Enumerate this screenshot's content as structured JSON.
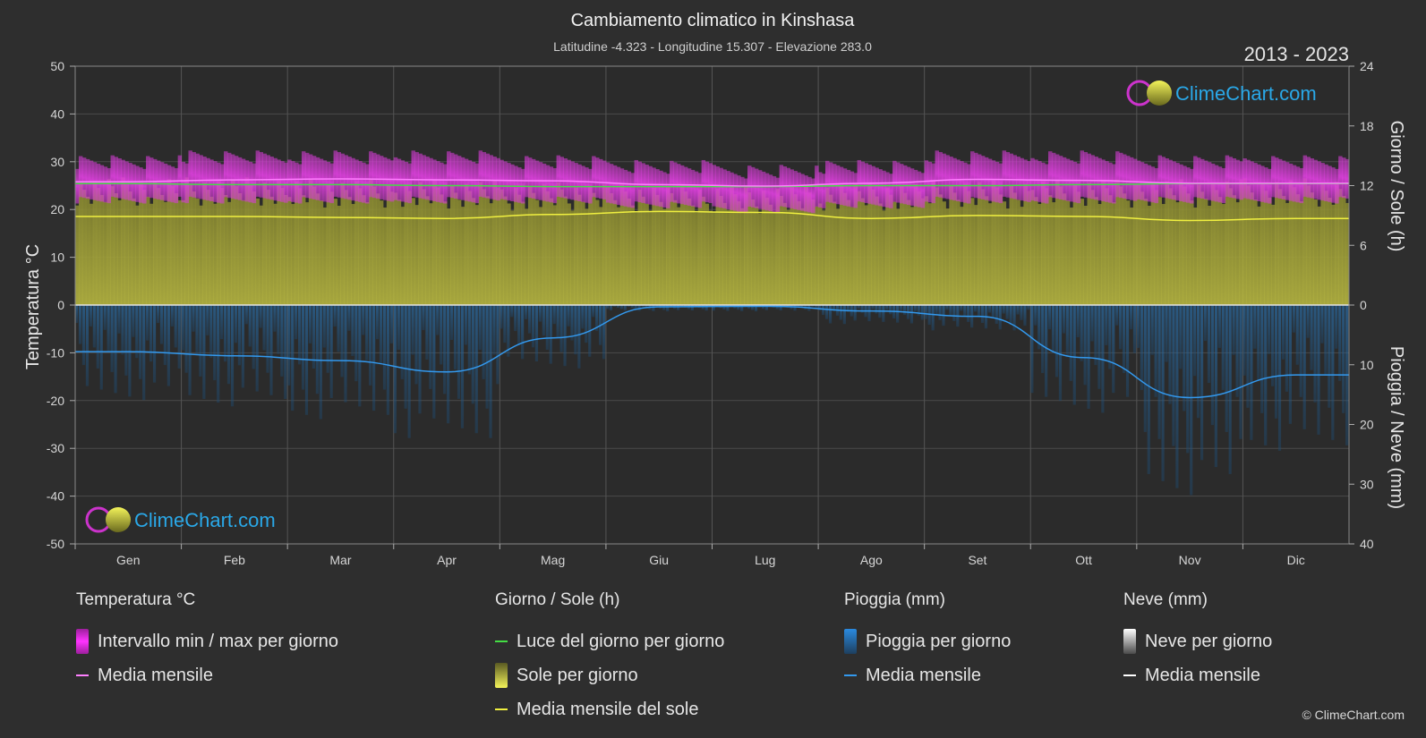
{
  "title": "Cambiamento climatico in Kinshasa",
  "subtitle": "Latitudine -4.323 - Longitudine 15.307 - Elevazione 283.0",
  "year_range": "2013 - 2023",
  "brand": "ClimeChart.com",
  "copyright": "© ClimeChart.com",
  "colors": {
    "background": "#2e2e2e",
    "temp_band": "#d63cd6",
    "temp_mean": "#ff80ff",
    "daylight": "#44dd44",
    "sun_band": "#a8a83a",
    "sun_mean": "#f0f040",
    "rain": "#2a6ea8",
    "rain_mean": "#3399ee",
    "snow_mean": "#ffffff",
    "brand_text": "#2aa8e8"
  },
  "chart_data": {
    "type": "area",
    "categories": [
      "Gen",
      "Feb",
      "Mar",
      "Apr",
      "Mag",
      "Giu",
      "Lug",
      "Ago",
      "Set",
      "Ott",
      "Nov",
      "Dic"
    ],
    "y_left": {
      "label": "Temperatura °C",
      "range": [
        -50,
        50
      ],
      "ticks": [
        "50",
        "40",
        "30",
        "20",
        "10",
        "0",
        "-10",
        "-20",
        "-30",
        "-40",
        "-50"
      ]
    },
    "y_right_top": {
      "label": "Giorno / Sole (h)",
      "range": [
        0,
        24
      ],
      "ticks": [
        "24",
        "18",
        "12",
        "6",
        "0"
      ]
    },
    "y_right_bottom": {
      "label": "Pioggia / Neve (mm)",
      "range": [
        0,
        40
      ],
      "ticks": [
        "10",
        "20",
        "30",
        "40"
      ]
    },
    "grid": true,
    "series": [
      {
        "name": "Intervallo min / max per giorno",
        "kind": "band",
        "axis": "temperature",
        "low": [
          22,
          22,
          22,
          22,
          22,
          21,
          20,
          21,
          22,
          22,
          22,
          22
        ],
        "high": [
          30,
          31,
          31,
          31,
          30,
          29,
          28,
          29,
          31,
          31,
          30,
          30
        ]
      },
      {
        "name": "Media mensile",
        "kind": "line",
        "axis": "temperature",
        "values": [
          25.8,
          26.2,
          26.4,
          26.2,
          26.0,
          25.2,
          24.9,
          25.5,
          26.3,
          26.1,
          25.5,
          25.5
        ]
      },
      {
        "name": "Luce del giorno per giorno",
        "kind": "line",
        "axis": "hours",
        "values": [
          12.2,
          12.1,
          12.1,
          12.0,
          11.9,
          11.9,
          11.9,
          12.0,
          12.0,
          12.1,
          12.2,
          12.2
        ]
      },
      {
        "name": "Sole per giorno",
        "kind": "band",
        "axis": "hours",
        "values": [
          11.5,
          11.5,
          11.3,
          11.2,
          11.0,
          10.8,
          10.7,
          11.0,
          11.2,
          11.3,
          11.3,
          11.4
        ]
      },
      {
        "name": "Media mensile del sole",
        "kind": "line",
        "axis": "hours",
        "values": [
          8.9,
          8.9,
          8.8,
          8.7,
          9.1,
          9.4,
          9.3,
          8.7,
          9.0,
          8.9,
          8.5,
          8.7
        ]
      },
      {
        "name": "Pioggia per giorno",
        "kind": "bars",
        "axis": "precipitation",
        "values": [
          7.5,
          8.0,
          9.0,
          10.5,
          5.0,
          0.5,
          0.5,
          1.5,
          2.0,
          8.5,
          15.0,
          11.5
        ]
      },
      {
        "name": "Media mensile",
        "kind": "line",
        "axis": "precipitation",
        "values": [
          7.8,
          8.5,
          9.3,
          11.2,
          5.5,
          0.3,
          0.2,
          1.0,
          1.9,
          8.8,
          15.5,
          11.7
        ]
      },
      {
        "name": "Media mensile",
        "kind": "line",
        "axis": "snow",
        "values": [
          0,
          0,
          0,
          0,
          0,
          0,
          0,
          0,
          0,
          0,
          0,
          0
        ]
      }
    ]
  },
  "legend": {
    "temperature": {
      "heading": "Temperatura °C",
      "items": [
        "Intervallo min / max per giorno",
        "Media mensile"
      ]
    },
    "daylight": {
      "heading": "Giorno / Sole (h)",
      "items": [
        "Luce del giorno per giorno",
        "Sole per giorno",
        "Media mensile del sole"
      ]
    },
    "rain": {
      "heading": "Pioggia (mm)",
      "items": [
        "Pioggia per giorno",
        "Media mensile"
      ]
    },
    "snow": {
      "heading": "Neve (mm)",
      "items": [
        "Neve per giorno",
        "Media mensile"
      ]
    }
  }
}
